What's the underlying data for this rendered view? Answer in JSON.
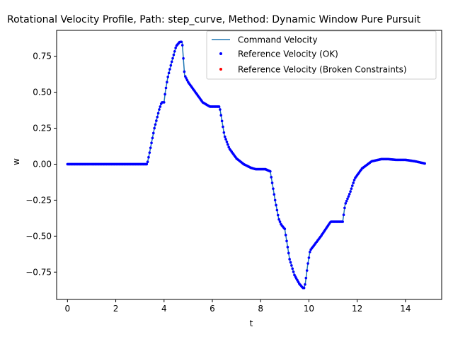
{
  "chart_data": {
    "type": "line",
    "title": "Rotational Velocity Profile, Path: step_curve, Method: Dynamic Window Pure Pursuit",
    "xlabel": "t",
    "ylabel": "w",
    "xlim": [
      -0.45,
      15.5
    ],
    "ylim": [
      -0.94,
      0.93
    ],
    "xticks": [
      0,
      2,
      4,
      6,
      8,
      10,
      12,
      14
    ],
    "xtick_labels": [
      "0",
      "2",
      "4",
      "6",
      "8",
      "10",
      "12",
      "14"
    ],
    "yticks": [
      -0.75,
      -0.5,
      -0.25,
      0.0,
      0.25,
      0.5,
      0.75
    ],
    "ytick_labels": [
      "−0.75",
      "−0.50",
      "−0.25",
      "0.00",
      "0.25",
      "0.50",
      "0.75"
    ],
    "grid": false,
    "legend_position": "upper right",
    "series": [
      {
        "name": "Command Velocity",
        "kind": "line",
        "color": "#1f77b4",
        "x": [
          0.0,
          3.3,
          3.4,
          3.6,
          3.8,
          3.9,
          4.0,
          4.05,
          4.15,
          4.3,
          4.5,
          4.65,
          4.75,
          4.85,
          5.0,
          5.3,
          5.6,
          5.9,
          6.0,
          6.3,
          6.4,
          6.5,
          6.7,
          7.0,
          7.3,
          7.6,
          7.8,
          8.0,
          8.2,
          8.4,
          8.5,
          8.6,
          8.75,
          8.85,
          9.0,
          9.2,
          9.4,
          9.6,
          9.75,
          9.8,
          9.85,
          9.95,
          10.05,
          10.5,
          10.9,
          11.0,
          11.4,
          11.5,
          11.7,
          11.9,
          12.2,
          12.6,
          13.0,
          13.3,
          13.6,
          14.0,
          14.4,
          14.8
        ],
        "y": [
          0.0,
          0.0,
          0.08,
          0.25,
          0.38,
          0.43,
          0.43,
          0.5,
          0.6,
          0.7,
          0.82,
          0.85,
          0.85,
          0.62,
          0.57,
          0.5,
          0.43,
          0.4,
          0.4,
          0.4,
          0.3,
          0.2,
          0.11,
          0.04,
          0.0,
          -0.025,
          -0.035,
          -0.035,
          -0.035,
          -0.05,
          -0.15,
          -0.25,
          -0.38,
          -0.42,
          -0.45,
          -0.66,
          -0.77,
          -0.83,
          -0.86,
          -0.86,
          -0.83,
          -0.7,
          -0.6,
          -0.5,
          -0.4,
          -0.4,
          -0.4,
          -0.28,
          -0.2,
          -0.1,
          -0.03,
          0.02,
          0.035,
          0.035,
          0.03,
          0.03,
          0.02,
          0.005
        ]
      },
      {
        "name": "Reference Velocity (OK)",
        "kind": "scatter",
        "color": "#0000ff"
      },
      {
        "name": "Reference Velocity (Broken Constraints)",
        "kind": "scatter",
        "color": "#ff0000",
        "x": [],
        "y": []
      }
    ]
  }
}
